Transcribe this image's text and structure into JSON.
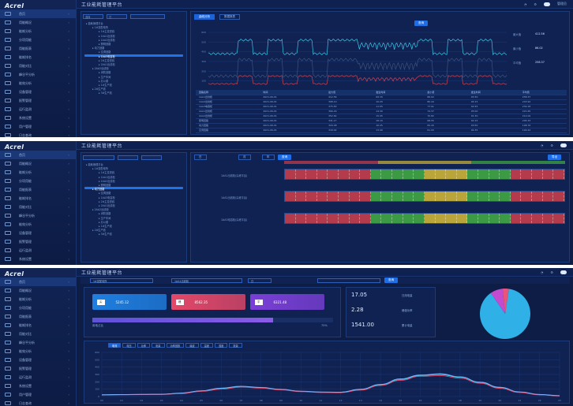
{
  "app": {
    "logo": "Acrel",
    "title": "工业能耗管理平台",
    "user": "管理员"
  },
  "sidebar": {
    "items": [
      "首页",
      "用能概况",
      "能耗分析",
      "分项用能",
      "用能报表",
      "能耗排名",
      "用能对比",
      "峰谷平分析",
      "能效分析",
      "设备管理",
      "报警管理",
      "运行监测",
      "系统设置",
      "用户管理",
      "日志查询"
    ]
  },
  "panel1": {
    "filters": {
      "left": "选择",
      "right": "日"
    },
    "tabs": [
      "曲线分析",
      "数据报表"
    ],
    "query_button": "查询",
    "tree_items": [
      "能耗管理平台",
      "1#变配电所",
      "1#主变进线",
      "1AA1出线柜",
      "1AA2出线柜",
      "照明回路",
      "动力回路",
      "空调回路",
      "1AA3电容柜",
      "2#主变进线",
      "2AA1出线柜",
      "2AA2出线柜",
      "消防回路",
      "生产车间",
      "办公楼",
      "1#生产线",
      "2#生产线",
      "3#生产线"
    ],
    "y_ticks": [
      "600",
      "500",
      "400",
      "300",
      "200",
      "100",
      "0"
    ],
    "x_ticks": [
      "00:00",
      "01:00",
      "02:00",
      "03:00",
      "04:00",
      "05:00",
      "06:00",
      "07:00",
      "08:00",
      "09:00",
      "10:00",
      "11:00",
      "12:00",
      "13:00",
      "14:00",
      "15:00",
      "16:00",
      "17:00",
      "18:00",
      "19:00",
      "20:00",
      "21:00",
      "22:00",
      "23:00"
    ],
    "legend": [
      "最大值",
      "最小值",
      "平均值"
    ],
    "stats": [
      "最大值",
      "412.56",
      "最小值",
      "86.02",
      "平均值",
      "258.37"
    ],
    "table": {
      "headers": [
        "回路名称",
        "时间",
        "最大值",
        "发生时间",
        "最小值",
        "发生时间",
        "平均值"
      ],
      "rows": [
        [
          "1AA1出线柜",
          "2021-06-01",
          "412.56",
          "09:15",
          "86.02",
          "03:30",
          "258.37"
        ],
        [
          "1AA2出线柜",
          "2021-06-01",
          "398.10",
          "10:20",
          "80.44",
          "04:15",
          "243.92"
        ],
        [
          "1AA3电容柜",
          "2021-06-01",
          "375.83",
          "11:05",
          "77.91",
          "02:45",
          "230.18"
        ],
        [
          "2AA1出线柜",
          "2021-06-01",
          "366.29",
          "14:30",
          "74.37",
          "05:00",
          "221.65"
        ],
        [
          "2AA2出线柜",
          "2021-06-01",
          "352.64",
          "15:45",
          "70.82",
          "01:30",
          "214.09"
        ],
        [
          "照明回路",
          "2021-06-01",
          "341.17",
          "18:10",
          "68.55",
          "02:15",
          "205.33"
        ],
        [
          "动力回路",
          "2021-06-01",
          "329.48",
          "16:25",
          "65.20",
          "03:50",
          "198.76"
        ],
        [
          "空调回路",
          "2021-06-01",
          "318.02",
          "13:40",
          "61.93",
          "04:35",
          "190.44"
        ]
      ]
    }
  },
  "panel2": {
    "tabs": [
      "日",
      "月",
      "年"
    ],
    "query_button": "查询",
    "export_button": "导出",
    "rows": [
      "1AA1出线柜(尖峰平谷)",
      "1AA2出线柜(尖峰平谷)",
      "1AA3电容柜(尖峰平谷)"
    ],
    "segments": [
      "#b33b4b",
      "#b33b4b",
      "#b33b4b",
      "#b33b4b",
      "#b33b4b",
      "#b33b4b",
      "#b33b4b",
      "#b33b4b",
      "#3d9a44",
      "#3d9a44",
      "#3d9a44",
      "#3d9a44",
      "#3d9a44",
      "#b9a53a",
      "#b9a53a",
      "#b9a53a",
      "#b9a53a",
      "#3d9a44",
      "#3d9a44",
      "#3d9a44",
      "#3d9a44",
      "#b33b4b",
      "#b33b4b",
      "#b33b4b",
      "#b33b4b",
      "#b33b4b"
    ],
    "legend_colors": [
      "#b33b4b",
      "#b9a53a",
      "#3d9a44"
    ]
  },
  "panel3": {
    "query_button": "查询",
    "select1": "1#变配电所",
    "select2": "1AA1出线柜",
    "select3": "日",
    "cards": [
      {
        "tag": "尖",
        "value": "5245.12",
        "color": "#1f7fe0"
      },
      {
        "tag": "峰",
        "value": "8562.35",
        "color": "#e44868"
      },
      {
        "tag": "平",
        "value": "6321.48",
        "color": "#7a3fd6"
      }
    ],
    "progress": {
      "label": "用电占比",
      "value": "75%",
      "fraction": 0.75
    },
    "metrics": [
      {
        "value": "17.05",
        "label": "日用电量"
      },
      {
        "value": "2.28",
        "label": "峰值功率"
      },
      {
        "value": "1541.00",
        "label": "累计电量"
      }
    ],
    "pie": {
      "values": [
        0.88,
        0.08,
        0.04
      ],
      "colors": [
        "#2fb0e6",
        "#c24bd0",
        "#e9557a"
      ]
    },
    "chart_tabs": [
      "电流",
      "电压",
      "功率",
      "电量",
      "功率因数",
      "谐波",
      "温度",
      "湿度",
      "需量"
    ],
    "y_ticks": [
      "600",
      "500",
      "400",
      "300",
      "200",
      "100",
      "0"
    ],
    "x_ticks": [
      "00",
      "01",
      "02",
      "03",
      "04",
      "05",
      "06",
      "07",
      "08",
      "09",
      "10",
      "11",
      "12",
      "13",
      "14",
      "15",
      "16",
      "17",
      "18",
      "19",
      "20",
      "21",
      "22",
      "23"
    ],
    "series": [
      {
        "name": "A相",
        "color": "#2fd0e6",
        "values": [
          22,
          26,
          28,
          30,
          45,
          75,
          110,
          135,
          120,
          95,
          70,
          60,
          58,
          95,
          160,
          230,
          285,
          300,
          260,
          190,
          120,
          60,
          25,
          10
        ]
      },
      {
        "name": "B相",
        "color": "#e44868",
        "values": [
          20,
          24,
          26,
          28,
          40,
          70,
          100,
          128,
          115,
          90,
          66,
          55,
          52,
          88,
          150,
          220,
          275,
          285,
          248,
          180,
          112,
          55,
          22,
          8
        ]
      },
      {
        "name": "C相",
        "color": "#7fb0ff",
        "values": [
          24,
          27,
          30,
          32,
          48,
          78,
          115,
          140,
          124,
          98,
          73,
          62,
          60,
          100,
          165,
          240,
          292,
          310,
          268,
          196,
          126,
          64,
          28,
          12
        ]
      }
    ]
  }
}
